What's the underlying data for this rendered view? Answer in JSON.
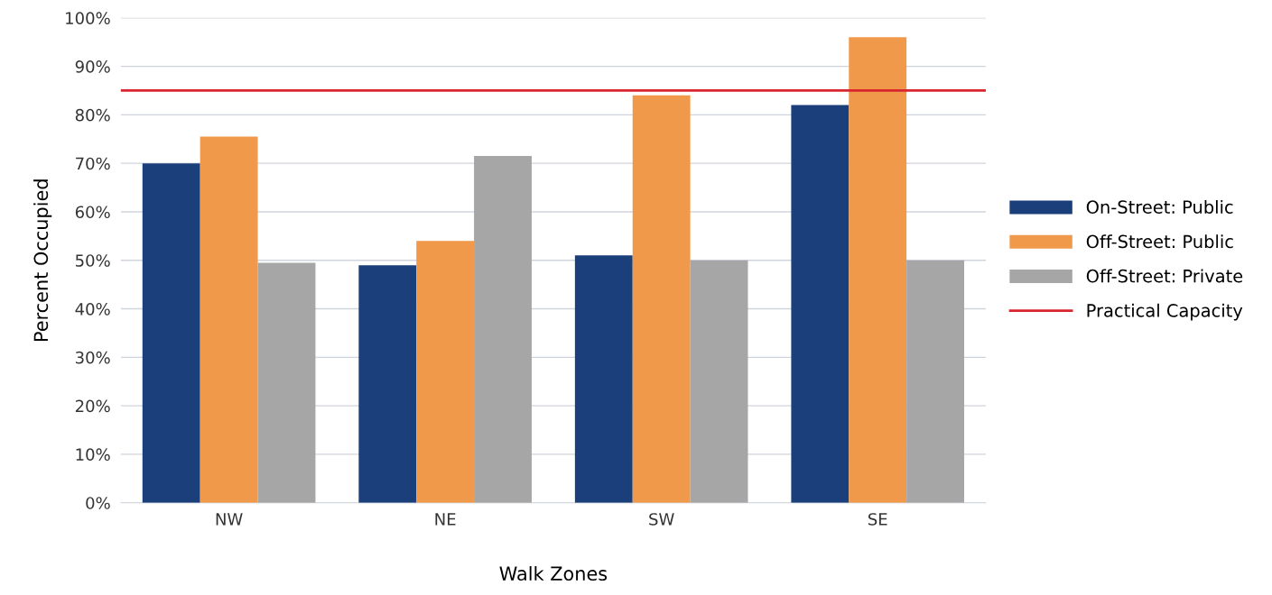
{
  "chart_data": {
    "type": "bar",
    "xlabel": "Walk Zones",
    "ylabel": "Percent Occupied",
    "categories": [
      "NW",
      "NE",
      "SW",
      "SE"
    ],
    "series": [
      {
        "name": "On-Street: Public",
        "color": "#1a3f7a",
        "values": [
          70,
          49,
          51,
          82
        ]
      },
      {
        "name": "Off-Street: Public",
        "color": "#f0994a",
        "values": [
          75.5,
          54,
          84,
          96
        ]
      },
      {
        "name": "Off-Street: Private",
        "color": "#a6a6a6",
        "values": [
          49.5,
          71.5,
          50,
          50
        ]
      }
    ],
    "ylim": [
      0,
      100
    ],
    "yticks": [
      {
        "value": 0,
        "label": "0%"
      },
      {
        "value": 10,
        "label": "10%"
      },
      {
        "value": 20,
        "label": "20%"
      },
      {
        "value": 30,
        "label": "30%"
      },
      {
        "value": 40,
        "label": "40%"
      },
      {
        "value": 50,
        "label": "50%"
      },
      {
        "value": 60,
        "label": "60%"
      },
      {
        "value": 70,
        "label": "70%"
      },
      {
        "value": 80,
        "label": "80%"
      },
      {
        "value": 90,
        "label": "90%"
      },
      {
        "value": 100,
        "label": "100%"
      }
    ],
    "ref_lines": [
      {
        "axis": "y",
        "value": 85,
        "label": "Practical Capacity",
        "color": "#d9262e"
      }
    ],
    "grid": "y",
    "legend": "right"
  }
}
